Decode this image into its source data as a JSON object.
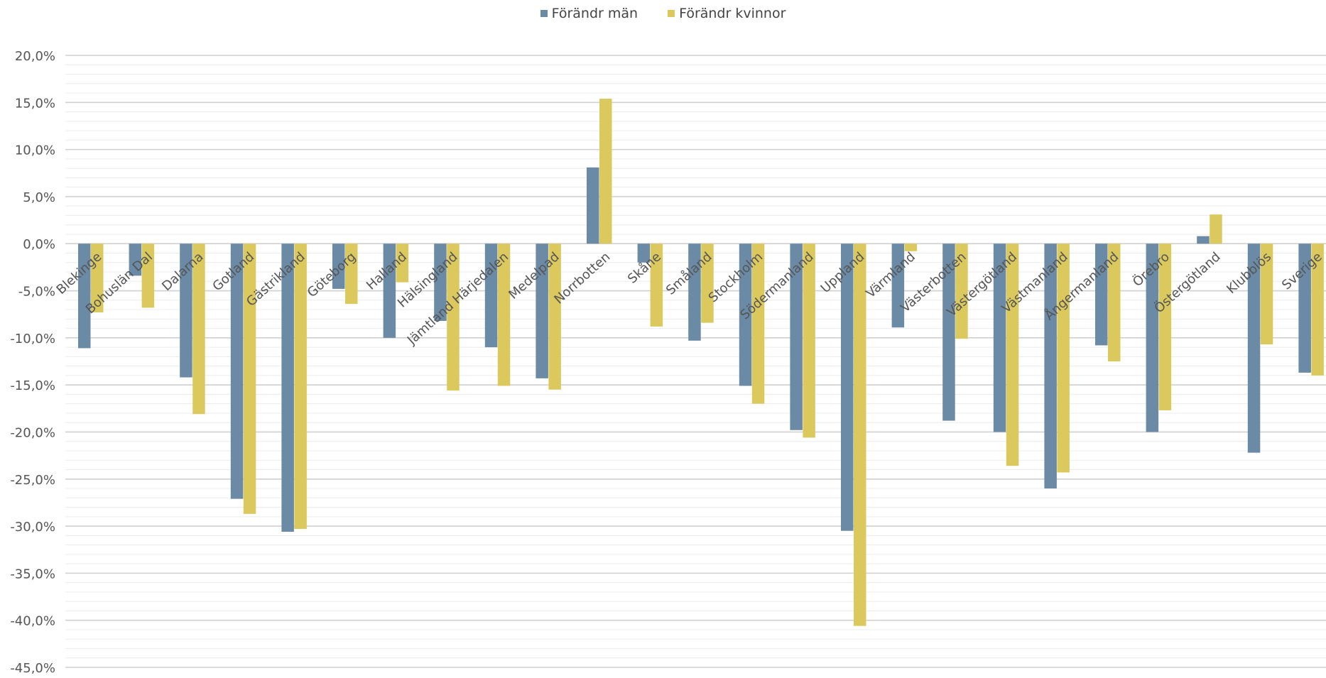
{
  "chart_data": {
    "type": "bar",
    "title": "",
    "xlabel": "",
    "ylabel": "",
    "ylim": [
      -45,
      20
    ],
    "y_major_step": 5,
    "y_minor_step": 1,
    "y_tick_format": "percent-comma-1",
    "legend_position": "top-center",
    "grid": true,
    "categories": [
      "Blekinge",
      "Bohuslän Dal",
      "Dalarna",
      "Gotland",
      "Gästrikland",
      "Göteborg",
      "Halland",
      "Hälsingland",
      "Jämtland Härjedalen",
      "Medelpad",
      "Norrbotten",
      "Skåne",
      "Småland",
      "Stockholm",
      "Södermanland",
      "Uppland",
      "Värmland",
      "Västerbotten",
      "Västergötland",
      "Västmanland",
      "Ångermanland",
      "Örebro",
      "Östergötland",
      "Klubblös",
      "Sverige"
    ],
    "series": [
      {
        "name": "Förändr män",
        "color": "#6b8aa5",
        "values": [
          -11.1,
          -3.4,
          -14.2,
          -27.1,
          -30.6,
          -4.8,
          -10.0,
          -8.2,
          -11.0,
          -14.3,
          8.1,
          -2.0,
          -10.3,
          -15.1,
          -19.8,
          -30.5,
          -8.9,
          -18.8,
          -20.0,
          -26.0,
          -10.8,
          -20.0,
          0.8,
          -22.2,
          -13.7
        ]
      },
      {
        "name": "Förändr kvinnor",
        "color": "#dcc95e",
        "values": [
          -7.3,
          -6.8,
          -18.1,
          -28.7,
          -30.3,
          -6.4,
          -4.1,
          -15.6,
          -15.1,
          -15.5,
          15.4,
          -8.8,
          -8.4,
          -17.0,
          -20.6,
          -40.6,
          -0.8,
          -10.1,
          -23.6,
          -24.3,
          -12.5,
          -17.7,
          3.1,
          -10.7,
          -14.0
        ]
      }
    ]
  }
}
